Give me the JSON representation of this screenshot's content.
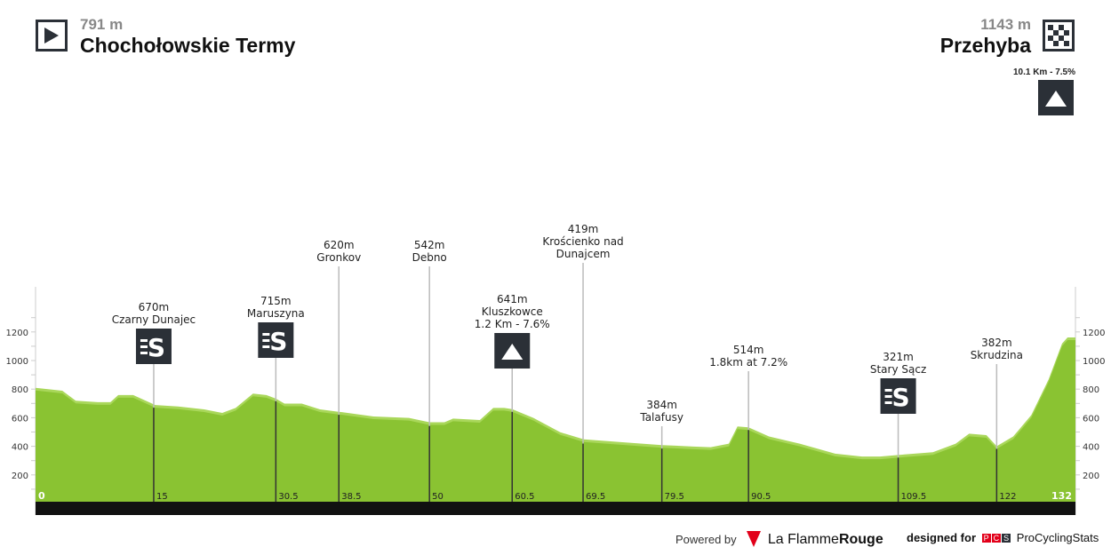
{
  "start": {
    "altitude": "791 m",
    "name": "Chochołowskie Termy",
    "icon": "start-flag-icon"
  },
  "finish": {
    "altitude": "1143 m",
    "name": "Przehyba",
    "icon": "finish-checkered-icon",
    "climb": "10.1 Km - 7.5%"
  },
  "colors": {
    "profile": "#8ac332",
    "highlight": "#a9d75a",
    "icon_bg": "#2b3037",
    "axis_bar": "#111111"
  },
  "chart_data": {
    "type": "area",
    "xlim": [
      0,
      132
    ],
    "ylim": [
      0,
      1400
    ],
    "yticks": [
      200,
      400,
      600,
      800,
      1000,
      1200
    ],
    "profile": [
      [
        0,
        790
      ],
      [
        1.7,
        780
      ],
      [
        3.4,
        770
      ],
      [
        5.1,
        700
      ],
      [
        7.9,
        690
      ],
      [
        9.5,
        690
      ],
      [
        10.5,
        740
      ],
      [
        12.4,
        740
      ],
      [
        15.2,
        670
      ],
      [
        18.1,
        660
      ],
      [
        21.4,
        640
      ],
      [
        23.7,
        615
      ],
      [
        25.4,
        650
      ],
      [
        27.6,
        750
      ],
      [
        29.3,
        740
      ],
      [
        30.5,
        715
      ],
      [
        31.6,
        680
      ],
      [
        33.8,
        680
      ],
      [
        36.1,
        640
      ],
      [
        38.9,
        620
      ],
      [
        42.9,
        590
      ],
      [
        47.4,
        580
      ],
      [
        50,
        550
      ],
      [
        51.9,
        550
      ],
      [
        53,
        575
      ],
      [
        56.4,
        565
      ],
      [
        58.1,
        650
      ],
      [
        59.5,
        650
      ],
      [
        60.5,
        641
      ],
      [
        63.2,
        580
      ],
      [
        66.6,
        480
      ],
      [
        69.6,
        430
      ],
      [
        74.5,
        410
      ],
      [
        79.5,
        390
      ],
      [
        83.5,
        380
      ],
      [
        85.7,
        375
      ],
      [
        88,
        400
      ],
      [
        89.1,
        520
      ],
      [
        90.5,
        514
      ],
      [
        93.1,
        450
      ],
      [
        97,
        400
      ],
      [
        101.5,
        330
      ],
      [
        104.9,
        310
      ],
      [
        107.2,
        310
      ],
      [
        109.5,
        321
      ],
      [
        113.9,
        340
      ],
      [
        116.8,
        400
      ],
      [
        118.5,
        470
      ],
      [
        120.7,
        460
      ],
      [
        122,
        382
      ],
      [
        124.1,
        450
      ],
      [
        126.4,
        600
      ],
      [
        128.6,
        850
      ],
      [
        130.3,
        1100
      ],
      [
        131,
        1143
      ],
      [
        132,
        1143
      ]
    ],
    "km_labels": [
      {
        "km": 0,
        "label": "0"
      },
      {
        "km": 132,
        "label": "132"
      }
    ],
    "markers": [
      {
        "km": 15,
        "km_label": "15",
        "elev": 670,
        "lines": [
          "670m",
          "Czarny Dunajec"
        ],
        "icon": "sprint",
        "top": 0
      },
      {
        "km": 30.5,
        "km_label": "30.5",
        "elev": 715,
        "lines": [
          "715m",
          "Maruszyna"
        ],
        "icon": "sprint",
        "top": 0
      },
      {
        "km": 38.5,
        "km_label": "38.5",
        "elev": 620,
        "lines": [
          "620m",
          "Gronkov"
        ],
        "icon": null,
        "top": 1
      },
      {
        "km": 50,
        "km_label": "50",
        "elev": 542,
        "lines": [
          "542m",
          "Debno"
        ],
        "icon": null,
        "top": 1
      },
      {
        "km": 60.5,
        "km_label": "60.5",
        "elev": 641,
        "lines": [
          "641m",
          "Kluszkowce",
          "1.2 Km - 7.6%"
        ],
        "icon": "climb",
        "top": 0
      },
      {
        "km": 69.5,
        "km_label": "69.5",
        "elev": 419,
        "lines": [
          "419m",
          "Krościenko nad",
          "Dunajcem"
        ],
        "icon": null,
        "top": 1
      },
      {
        "km": 79.5,
        "km_label": "79.5",
        "elev": 384,
        "lines": [
          "384m",
          "Talafusy"
        ],
        "icon": null,
        "top": 2
      },
      {
        "km": 90.5,
        "km_label": "90.5",
        "elev": 514,
        "lines": [
          "514m",
          "1.8km at 7.2%"
        ],
        "icon": null,
        "top": 2
      },
      {
        "km": 109.5,
        "km_label": "109.5",
        "elev": 321,
        "lines": [
          "321m",
          "Stary Sącz"
        ],
        "icon": "sprint",
        "top": 0
      },
      {
        "km": 122,
        "km_label": "122",
        "elev": 382,
        "lines": [
          "382m",
          "Skrudzina"
        ],
        "icon": null,
        "top": 2
      }
    ]
  },
  "footer": {
    "powered": "Powered by",
    "brand1": "La Flamme",
    "brand2": "Rouge",
    "designed": "designed for",
    "pcs": [
      "P",
      "C",
      "S"
    ],
    "site": "ProCyclingStats"
  }
}
